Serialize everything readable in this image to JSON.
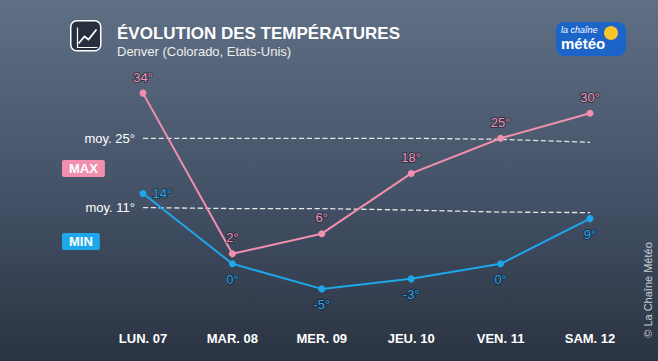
{
  "chart_data": {
    "type": "line",
    "title": "ÉVOLUTION DES TEMPÉRATURES",
    "subtitle": "Denver (Colorado, Etats-Unis)",
    "categories": [
      "LUN. 07",
      "MAR. 08",
      "MER. 09",
      "JEU. 10",
      "VEN. 11",
      "SAM. 12"
    ],
    "series": [
      {
        "name": "MAX",
        "color": "#f28fae",
        "values": [
          34,
          2,
          6,
          18,
          25,
          30
        ],
        "value_labels": [
          "34°",
          "2°",
          "6°",
          "18°",
          "25°",
          "30°"
        ],
        "marker": "circle",
        "line_style": "solid",
        "data_labels": true
      },
      {
        "name": "MIN",
        "color": "#1ea7ea",
        "values": [
          14,
          0,
          -5,
          -3,
          0,
          9
        ],
        "value_labels": [
          "14°",
          "0°",
          "-5°",
          "-3°",
          "0°",
          "9°"
        ],
        "marker": "circle",
        "line_style": "solid",
        "data_labels": true
      },
      {
        "name": "moy. 25°",
        "color": "#e6e6e6",
        "values": [
          25,
          25,
          25,
          25,
          24.8,
          24.2
        ],
        "marker": "none",
        "line_style": "dashed"
      },
      {
        "name": "moy. 11°",
        "color": "#e6e6e6",
        "values": [
          11.2,
          11,
          11,
          10.7,
          10.3,
          10.2
        ],
        "marker": "none",
        "line_style": "dashed"
      }
    ],
    "ylim": [
      -10,
      40
    ],
    "tick_labels": "x",
    "grid": false,
    "annotations": {
      "logo": [
        "la chaîne",
        "météo"
      ],
      "credit": "© La Chaîne Météo"
    }
  }
}
